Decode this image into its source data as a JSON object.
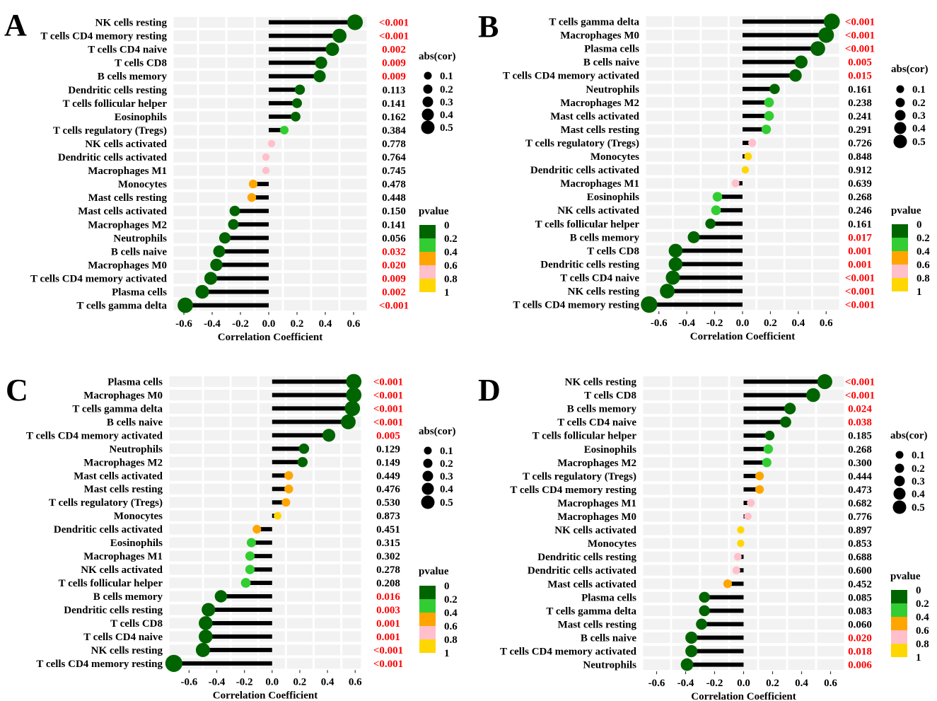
{
  "figure": {
    "pvalue_legend": {
      "title": "pvalue",
      "labels": [
        "0",
        "0.2",
        "0.4",
        "0.6",
        "0.8",
        "1"
      ],
      "colors": [
        "#006400",
        "#32CD32",
        "#FFA500",
        "#FFC0CB",
        "#FFD700"
      ]
    },
    "size_legend": {
      "title": "abs(cor)",
      "labels": [
        "0.1",
        "0.2",
        "0.3",
        "0.4",
        "0.5"
      ]
    },
    "colors": {
      "stem": "#000000",
      "significant": "#FF0000",
      "normal": "#000000",
      "grid": "#F2F2F2"
    }
  },
  "chart_data": [
    {
      "type": "lollipop",
      "panel_label": "A",
      "xlabel": "Correlation Coefficient",
      "xlim": [
        -0.68,
        0.7
      ],
      "xticks": [
        "-0.6",
        "-0.4",
        "-0.2",
        "0.0",
        "0.2",
        "0.4",
        "0.6"
      ],
      "categories": [
        "NK cells resting",
        "T cells CD4 memory resting",
        "T cells CD4 naive",
        "T cells CD8",
        "B cells memory",
        "Dendritic cells resting",
        "T cells follicular helper",
        "Eosinophils",
        "T cells regulatory (Tregs)",
        "NK cells activated",
        "Dendritic cells activated",
        "Macrophages M1",
        "Monocytes",
        "Mast cells resting",
        "Mast cells activated",
        "Macrophages M2",
        "Neutrophils",
        "B cells naive",
        "Macrophages M0",
        "T cells CD4 memory activated",
        "Plasma cells",
        "T cells gamma delta"
      ],
      "values": [
        0.61,
        0.5,
        0.45,
        0.37,
        0.36,
        0.22,
        0.2,
        0.19,
        0.11,
        0.02,
        -0.02,
        -0.02,
        -0.11,
        -0.12,
        -0.24,
        -0.25,
        -0.31,
        -0.35,
        -0.37,
        -0.41,
        -0.47,
        -0.59
      ],
      "pvalues": [
        "<0.001",
        "<0.001",
        "0.002",
        "0.009",
        "0.009",
        "0.113",
        "0.141",
        "0.162",
        "0.384",
        "0.778",
        "0.764",
        "0.745",
        "0.478",
        "0.448",
        "0.150",
        "0.141",
        "0.056",
        "0.032",
        "0.020",
        "0.009",
        "0.002",
        "<0.001"
      ]
    },
    {
      "type": "lollipop",
      "panel_label": "B",
      "xlabel": "Correlation Coefficient",
      "xlim": [
        -0.7,
        0.7
      ],
      "xticks": [
        "-0.6",
        "-0.4",
        "-0.2",
        "0.0",
        "0.2",
        "0.4",
        "0.6"
      ],
      "categories": [
        "T cells gamma delta",
        "Macrophages M0",
        "Plasma cells",
        "B cells naive",
        "T cells CD4 memory activated",
        "Neutrophils",
        "Macrophages M2",
        "Mast cells activated",
        "Mast cells resting",
        "T cells regulatory (Tregs)",
        "Monocytes",
        "Dendritic cells activated",
        "Macrophages M1",
        "Eosinophils",
        "NK cells activated",
        "T cells follicular helper",
        "B cells memory",
        "T cells CD8",
        "Dendritic cells resting",
        "T cells CD4 naive",
        "NK cells resting",
        "T cells CD4 memory resting"
      ],
      "values": [
        0.64,
        0.6,
        0.54,
        0.42,
        0.38,
        0.23,
        0.19,
        0.19,
        0.17,
        0.07,
        0.04,
        0.02,
        -0.05,
        -0.18,
        -0.19,
        -0.23,
        -0.35,
        -0.48,
        -0.48,
        -0.5,
        -0.54,
        -0.67
      ],
      "pvalues": [
        "<0.001",
        "<0.001",
        "<0.001",
        "0.005",
        "0.015",
        "0.161",
        "0.238",
        "0.241",
        "0.291",
        "0.726",
        "0.848",
        "0.912",
        "0.639",
        "0.268",
        "0.246",
        "0.161",
        "0.017",
        "0.001",
        "0.001",
        "<0.001",
        "<0.001",
        "<0.001"
      ]
    },
    {
      "type": "lollipop",
      "panel_label": "C",
      "xlabel": "Correlation Coefficient",
      "xlim": [
        -0.75,
        0.65
      ],
      "xticks": [
        "-0.6",
        "-0.4",
        "-0.2",
        "0.0",
        "0.2",
        "0.4",
        "0.6"
      ],
      "categories": [
        "Plasma cells",
        "Macrophages M0",
        "T cells gamma delta",
        "B cells naive",
        "T cells CD4 memory activated",
        "Neutrophils",
        "Macrophages M2",
        "Mast cells activated",
        "Mast cells resting",
        "T cells regulatory (Tregs)",
        "Monocytes",
        "Dendritic cells activated",
        "Eosinophils",
        "Macrophages M1",
        "NK cells activated",
        "T cells follicular helper",
        "B cells memory",
        "Dendritic cells resting",
        "T cells CD8",
        "T cells CD4 naive",
        "NK cells resting",
        "T cells CD4 memory resting"
      ],
      "values": [
        0.59,
        0.59,
        0.58,
        0.55,
        0.41,
        0.23,
        0.22,
        0.12,
        0.12,
        0.1,
        0.04,
        -0.11,
        -0.15,
        -0.16,
        -0.16,
        -0.19,
        -0.37,
        -0.46,
        -0.48,
        -0.48,
        -0.5,
        -0.71
      ],
      "pvalues": [
        "<0.001",
        "<0.001",
        "<0.001",
        "<0.001",
        "0.005",
        "0.129",
        "0.149",
        "0.449",
        "0.476",
        "0.530",
        "0.873",
        "0.451",
        "0.315",
        "0.302",
        "0.278",
        "0.208",
        "0.016",
        "0.003",
        "0.001",
        "0.001",
        "<0.001",
        "<0.001"
      ]
    },
    {
      "type": "lollipop",
      "panel_label": "D",
      "xlabel": "Correlation Coefficient",
      "xlim": [
        -0.7,
        0.7
      ],
      "xticks": [
        "-0.6",
        "-0.4",
        "-0.2",
        "0.0",
        "0.2",
        "0.4",
        "0.6"
      ],
      "categories": [
        "NK cells resting",
        "T cells CD8",
        "B cells memory",
        "T cells CD4 naive",
        "T cells follicular helper",
        "Eosinophils",
        "Macrophages M2",
        "T cells regulatory (Tregs)",
        "T cells CD4 memory resting",
        "Macrophages M1",
        "Macrophages M0",
        "NK cells activated",
        "Monocytes",
        "Dendritic cells resting",
        "Dendritic cells activated",
        "Mast cells activated",
        "Plasma cells",
        "T cells gamma delta",
        "Mast cells resting",
        "B cells naive",
        "T cells CD4 memory activated",
        "Neutrophils"
      ],
      "values": [
        0.56,
        0.48,
        0.32,
        0.29,
        0.18,
        0.17,
        0.16,
        0.11,
        0.11,
        0.05,
        0.03,
        -0.02,
        -0.02,
        -0.04,
        -0.05,
        -0.11,
        -0.27,
        -0.27,
        -0.29,
        -0.36,
        -0.36,
        -0.39
      ],
      "pvalues": [
        "<0.001",
        "<0.001",
        "0.024",
        "0.038",
        "0.185",
        "0.268",
        "0.300",
        "0.444",
        "0.473",
        "0.682",
        "0.776",
        "0.897",
        "0.853",
        "0.688",
        "0.600",
        "0.452",
        "0.085",
        "0.083",
        "0.060",
        "0.020",
        "0.018",
        "0.006"
      ]
    }
  ]
}
